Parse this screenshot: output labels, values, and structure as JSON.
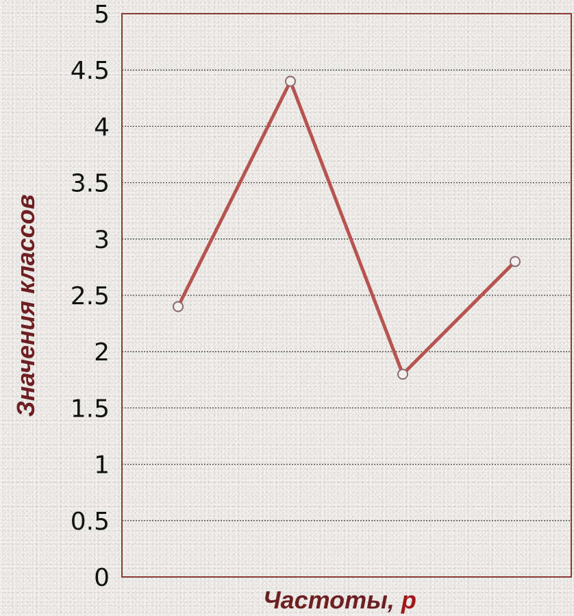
{
  "chart_data": {
    "type": "line",
    "title": "",
    "xlabel": "Частоты, ",
    "xlabel_var": "p",
    "ylabel": "Значения классов",
    "ylim": [
      0,
      5
    ],
    "yticks": [
      "0",
      "0.5",
      "1",
      "1.5",
      "2",
      "2.5",
      "3",
      "3.5",
      "4",
      "4.5",
      "5"
    ],
    "grid": true,
    "legend": "none",
    "x": [
      1,
      2,
      3,
      4
    ],
    "series": [
      {
        "values": [
          2.4,
          4.4,
          1.8,
          2.8
        ]
      }
    ]
  },
  "colors": {
    "line": "#b85450",
    "axis_title": "#6e1f22",
    "axis_title_var": "#a3161a",
    "frame": "#8a3a38",
    "grid": "#444444",
    "marker_fill": "#f2f0ee",
    "marker_stroke": "#8c6a6a"
  }
}
